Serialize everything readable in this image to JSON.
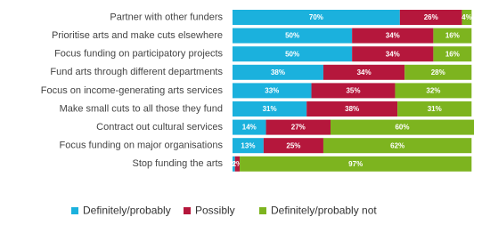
{
  "chart_data": {
    "type": "bar",
    "orientation": "horizontal",
    "stacked": true,
    "categories": [
      "Partner with other funders",
      "Prioritise arts and make cuts elsewhere",
      "Focus funding on participatory projects",
      "Fund arts through different departments",
      "Focus on income-generating arts services",
      "Make small cuts to all those they fund",
      "Contract out cultural services",
      "Focus funding on major organisations",
      "Stop funding the arts"
    ],
    "series": [
      {
        "name": "Definitely/probably",
        "color": "#1bb1dd",
        "values": [
          70,
          50,
          50,
          38,
          33,
          31,
          14,
          13,
          1
        ],
        "value_labels": [
          "70%",
          "50%",
          "50%",
          "38%",
          "33%",
          "31%",
          "14%",
          "13%",
          "1%"
        ]
      },
      {
        "name": "Possibly",
        "color": "#b5173c",
        "values": [
          26,
          34,
          34,
          34,
          35,
          38,
          27,
          25,
          2
        ],
        "value_labels": [
          "26%",
          "34%",
          "34%",
          "34%",
          "35%",
          "38%",
          "27%",
          "25%",
          "2%"
        ]
      },
      {
        "name": "Definitely/probably not",
        "color": "#7db41f",
        "values": [
          4,
          16,
          16,
          28,
          32,
          31,
          60,
          62,
          97
        ],
        "value_labels": [
          "4%",
          "16%",
          "16%",
          "28%",
          "32%",
          "31%",
          "60%",
          "62%",
          "97%"
        ]
      }
    ],
    "legend": "bottom"
  }
}
